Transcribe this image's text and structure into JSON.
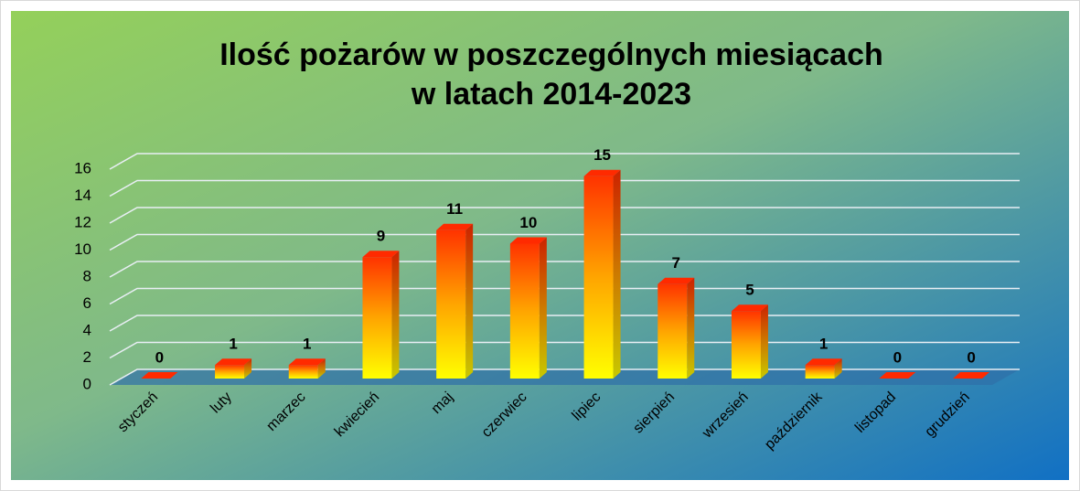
{
  "chart_data": {
    "type": "bar3d",
    "title": "Ilość pożarów w poszczególnych miesiącach",
    "subtitle": "w latach 2014-2023",
    "categories": [
      "styczeń",
      "luty",
      "marzec",
      "kwiecień",
      "maj",
      "czerwiec",
      "lipiec",
      "sierpień",
      "wrzesień",
      "październik",
      "listopad",
      "grudzień"
    ],
    "values": [
      0,
      1,
      1,
      9,
      11,
      10,
      15,
      7,
      5,
      1,
      0,
      0
    ],
    "ylim": [
      0,
      16
    ],
    "yticks": [
      0,
      2,
      4,
      6,
      8,
      10,
      12,
      14,
      16
    ],
    "grid": true
  }
}
